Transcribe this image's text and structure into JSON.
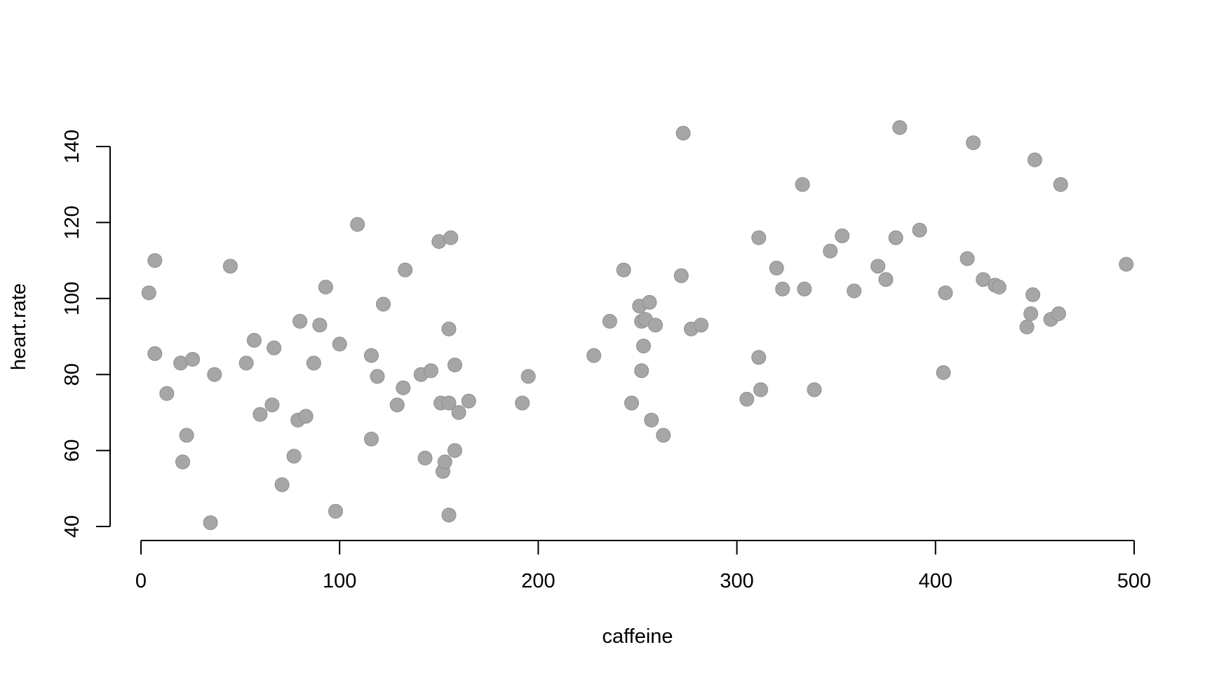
{
  "chart_data": {
    "type": "scatter",
    "title": "",
    "xlabel": "caffeine",
    "ylabel": "heart.rate",
    "xlim": [
      0,
      500
    ],
    "ylim": [
      40,
      145
    ],
    "x_ticks": [
      "0",
      "100",
      "200",
      "300",
      "400",
      "500"
    ],
    "y_ticks": [
      "40",
      "60",
      "80",
      "100",
      "120",
      "140"
    ],
    "grid": false,
    "legend": "none",
    "point_color": "#a6a6a6",
    "points": [
      {
        "x": 4,
        "y": 101.5
      },
      {
        "x": 7,
        "y": 110
      },
      {
        "x": 7,
        "y": 85.5
      },
      {
        "x": 13,
        "y": 75
      },
      {
        "x": 20,
        "y": 83
      },
      {
        "x": 21,
        "y": 57
      },
      {
        "x": 23,
        "y": 64
      },
      {
        "x": 26,
        "y": 84
      },
      {
        "x": 35,
        "y": 41
      },
      {
        "x": 37,
        "y": 80
      },
      {
        "x": 45,
        "y": 108.5
      },
      {
        "x": 53,
        "y": 83
      },
      {
        "x": 57,
        "y": 89
      },
      {
        "x": 60,
        "y": 69.5
      },
      {
        "x": 66,
        "y": 72
      },
      {
        "x": 67,
        "y": 87
      },
      {
        "x": 71,
        "y": 51
      },
      {
        "x": 77,
        "y": 58.5
      },
      {
        "x": 79,
        "y": 68
      },
      {
        "x": 80,
        "y": 94
      },
      {
        "x": 83,
        "y": 69
      },
      {
        "x": 87,
        "y": 83
      },
      {
        "x": 90,
        "y": 93
      },
      {
        "x": 93,
        "y": 103
      },
      {
        "x": 98,
        "y": 44
      },
      {
        "x": 100,
        "y": 88
      },
      {
        "x": 109,
        "y": 119.5
      },
      {
        "x": 116,
        "y": 85
      },
      {
        "x": 116,
        "y": 63
      },
      {
        "x": 119,
        "y": 79.5
      },
      {
        "x": 122,
        "y": 98.5
      },
      {
        "x": 129,
        "y": 72
      },
      {
        "x": 132,
        "y": 76.5
      },
      {
        "x": 133,
        "y": 107.5
      },
      {
        "x": 141,
        "y": 80
      },
      {
        "x": 143,
        "y": 58
      },
      {
        "x": 146,
        "y": 81
      },
      {
        "x": 150,
        "y": 115
      },
      {
        "x": 151,
        "y": 72.5
      },
      {
        "x": 152,
        "y": 54.5
      },
      {
        "x": 153,
        "y": 57
      },
      {
        "x": 155,
        "y": 92
      },
      {
        "x": 155,
        "y": 72.5
      },
      {
        "x": 155,
        "y": 43
      },
      {
        "x": 156,
        "y": 116
      },
      {
        "x": 158,
        "y": 82.5
      },
      {
        "x": 158,
        "y": 60
      },
      {
        "x": 160,
        "y": 70
      },
      {
        "x": 165,
        "y": 73
      },
      {
        "x": 192,
        "y": 72.5
      },
      {
        "x": 195,
        "y": 79.5
      },
      {
        "x": 228,
        "y": 85
      },
      {
        "x": 236,
        "y": 94
      },
      {
        "x": 243,
        "y": 107.5
      },
      {
        "x": 247,
        "y": 72.5
      },
      {
        "x": 251,
        "y": 98
      },
      {
        "x": 252,
        "y": 94
      },
      {
        "x": 252,
        "y": 81
      },
      {
        "x": 253,
        "y": 87.5
      },
      {
        "x": 254,
        "y": 94.5
      },
      {
        "x": 256,
        "y": 99
      },
      {
        "x": 257,
        "y": 68
      },
      {
        "x": 259,
        "y": 93
      },
      {
        "x": 263,
        "y": 64
      },
      {
        "x": 272,
        "y": 106
      },
      {
        "x": 273,
        "y": 143.5
      },
      {
        "x": 277,
        "y": 92
      },
      {
        "x": 282,
        "y": 93
      },
      {
        "x": 305,
        "y": 73.5
      },
      {
        "x": 311,
        "y": 84.5
      },
      {
        "x": 311,
        "y": 116
      },
      {
        "x": 312,
        "y": 76
      },
      {
        "x": 320,
        "y": 108
      },
      {
        "x": 323,
        "y": 102.5
      },
      {
        "x": 333,
        "y": 130
      },
      {
        "x": 334,
        "y": 102.5
      },
      {
        "x": 339,
        "y": 76
      },
      {
        "x": 347,
        "y": 112.5
      },
      {
        "x": 353,
        "y": 116.5
      },
      {
        "x": 359,
        "y": 102
      },
      {
        "x": 371,
        "y": 108.5
      },
      {
        "x": 375,
        "y": 105
      },
      {
        "x": 380,
        "y": 116
      },
      {
        "x": 382,
        "y": 145
      },
      {
        "x": 392,
        "y": 118
      },
      {
        "x": 404,
        "y": 80.5
      },
      {
        "x": 405,
        "y": 101.5
      },
      {
        "x": 416,
        "y": 110.5
      },
      {
        "x": 419,
        "y": 141
      },
      {
        "x": 424,
        "y": 105
      },
      {
        "x": 430,
        "y": 103.5
      },
      {
        "x": 432,
        "y": 103
      },
      {
        "x": 446,
        "y": 92.5
      },
      {
        "x": 448,
        "y": 96
      },
      {
        "x": 449,
        "y": 101
      },
      {
        "x": 450,
        "y": 136.5
      },
      {
        "x": 458,
        "y": 94.5
      },
      {
        "x": 462,
        "y": 96
      },
      {
        "x": 463,
        "y": 130
      },
      {
        "x": 496,
        "y": 109
      }
    ]
  }
}
